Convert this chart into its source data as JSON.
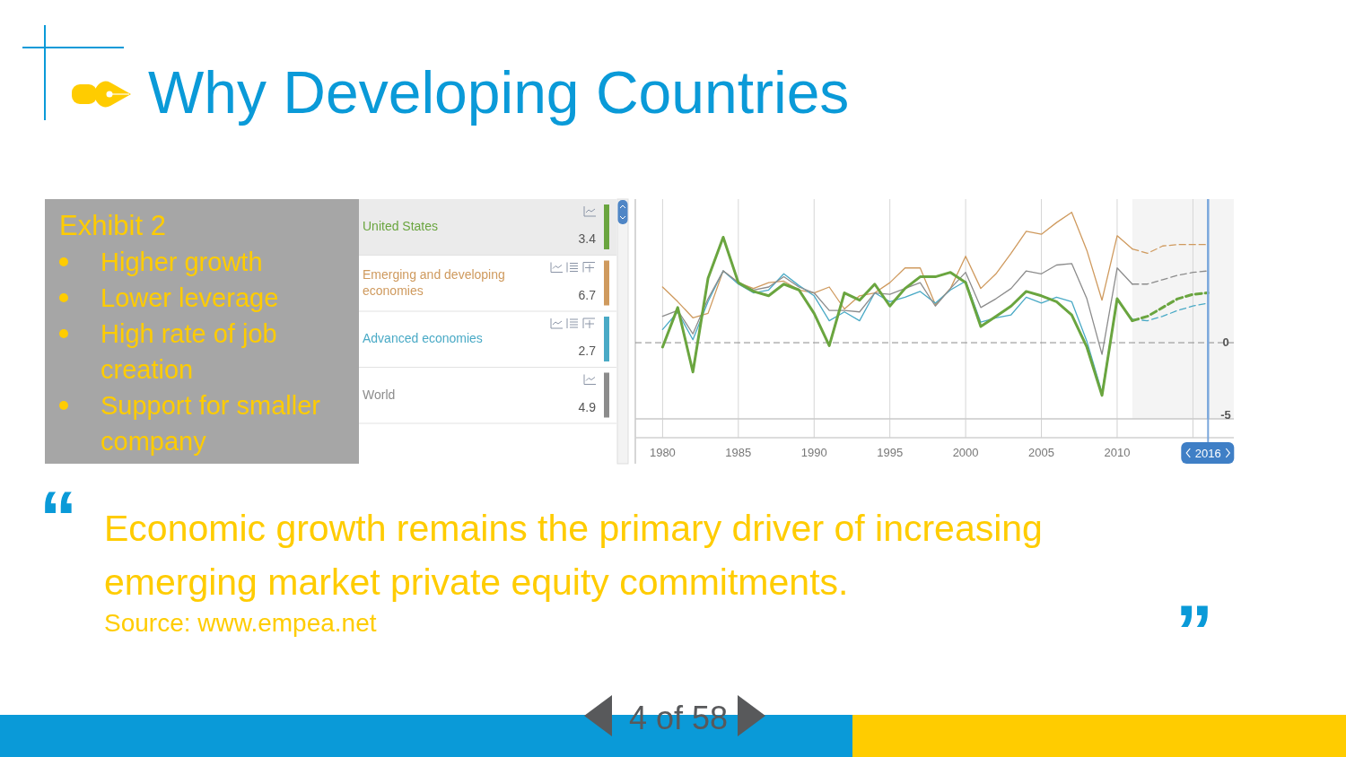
{
  "chart_data": {
    "type": "line",
    "title": "Why Developing Countries",
    "subtitle": "Exhibit 2",
    "annotations": [
      "Higher growth",
      "Lower leverage",
      "High rate of job creation",
      "Support for smaller company",
      "Economic growth remains the primary driver of increasing emerging market private equity commitments.",
      "Source: www.empea.net",
      "4 of 58",
      "“",
      "”",
      "3.4",
      "6.7",
      "2.7",
      "4.9"
    ],
    "xlim": [
      1978.2,
      2017.7
    ],
    "xticks": [
      1980,
      1985,
      1990,
      1995,
      2000,
      2005,
      2010,
      {
        "value": 2015,
        "label": null
      }
    ],
    "ylim": [
      -5.2,
      9.8
    ],
    "yticks": [
      -5,
      0
    ],
    "grid": "x",
    "legend": "left",
    "bands": [
      {
        "axis": "x",
        "from": 2011,
        "to": 2017.7,
        "color": "#f4f4f4"
      }
    ],
    "ref_lines": [
      {
        "axis": "y",
        "value": 0,
        "color": "#8a8a8a",
        "line_style": "dashed"
      },
      {
        "axis": "x",
        "value": 2016,
        "label": "2016",
        "color": "#7aa7dc"
      }
    ],
    "series": [
      {
        "name": "United States",
        "color": "#6aa53f",
        "x": [
          1980,
          1981,
          1982,
          1983,
          1984,
          1985,
          1986,
          1987,
          1988,
          1989,
          1990,
          1991,
          1992,
          1993,
          1994,
          1995,
          1996,
          1997,
          1998,
          1999,
          2000,
          2001,
          2002,
          2003,
          2004,
          2005,
          2006,
          2007,
          2008,
          2009,
          2010,
          2011
        ],
        "values": [
          -0.3,
          2.4,
          -2.0,
          4.4,
          7.2,
          4.1,
          3.5,
          3.2,
          4.0,
          3.6,
          2.0,
          -0.2,
          3.4,
          2.9,
          4.0,
          2.5,
          3.7,
          4.5,
          4.5,
          4.8,
          4.1,
          1.1,
          1.8,
          2.5,
          3.5,
          3.2,
          2.8,
          1.9,
          -0.3,
          -3.6,
          3.0,
          1.5
        ]
      },
      {
        "name": "Emerging and developing economies",
        "color": "#cf9a5e",
        "x": [
          1980,
          1981,
          1982,
          1983,
          1984,
          1985,
          1986,
          1987,
          1988,
          1989,
          1990,
          1991,
          1992,
          1993,
          1994,
          1995,
          1996,
          1997,
          1998,
          1999,
          2000,
          2001,
          2002,
          2003,
          2004,
          2005,
          2006,
          2007,
          2008,
          2009,
          2010,
          2011
        ],
        "values": [
          3.8,
          2.8,
          1.7,
          2.0,
          4.9,
          4.1,
          3.7,
          4.1,
          4.2,
          3.6,
          3.4,
          3.8,
          2.3,
          3.2,
          3.4,
          4.1,
          5.1,
          5.1,
          2.6,
          3.7,
          5.9,
          3.7,
          4.7,
          6.1,
          7.6,
          7.4,
          8.2,
          8.9,
          6.3,
          2.9,
          7.3,
          6.4
        ]
      },
      {
        "name": "Advanced economies",
        "color": "#4aaac6",
        "x": [
          1980,
          1981,
          1982,
          1983,
          1984,
          1985,
          1986,
          1987,
          1988,
          1989,
          1990,
          1991,
          1992,
          1993,
          1994,
          1995,
          1996,
          1997,
          1998,
          1999,
          2000,
          2001,
          2002,
          2003,
          2004,
          2005,
          2006,
          2007,
          2008,
          2009,
          2010,
          2011
        ],
        "values": [
          0.9,
          2.1,
          0.2,
          2.8,
          4.9,
          4.0,
          3.4,
          3.6,
          4.7,
          3.9,
          3.2,
          1.5,
          2.1,
          1.5,
          3.4,
          2.8,
          3.1,
          3.5,
          2.7,
          3.6,
          4.2,
          1.4,
          1.7,
          1.9,
          3.1,
          2.7,
          3.1,
          2.8,
          0.1,
          -3.4,
          2.9,
          1.6
        ]
      },
      {
        "name": "World",
        "color": "#8c8c8c",
        "x": [
          1980,
          1981,
          1982,
          1983,
          1984,
          1985,
          1986,
          1987,
          1988,
          1989,
          1990,
          1991,
          1992,
          1993,
          1994,
          1995,
          1996,
          1997,
          1998,
          1999,
          2000,
          2001,
          2002,
          2003,
          2004,
          2005,
          2006,
          2007,
          2008,
          2009,
          2010,
          2011
        ],
        "values": [
          1.8,
          2.2,
          0.6,
          3.0,
          4.9,
          4.1,
          3.6,
          3.8,
          4.5,
          3.8,
          3.4,
          2.2,
          2.2,
          2.1,
          3.4,
          3.3,
          3.7,
          4.1,
          2.5,
          3.7,
          4.8,
          2.4,
          3.0,
          3.7,
          4.9,
          4.7,
          5.3,
          5.4,
          3.0,
          -0.8,
          5.1,
          4.0
        ]
      },
      {
        "color": "#6aa53f",
        "line_style": "dashed",
        "x": [
          2011,
          2012,
          2013,
          2014,
          2015,
          2016
        ],
        "values": [
          1.5,
          1.8,
          2.4,
          3.0,
          3.3,
          3.4
        ]
      },
      {
        "color": "#cf9a5e",
        "line_style": "dashed",
        "x": [
          2011,
          2012,
          2013,
          2014,
          2015,
          2016
        ],
        "values": [
          6.4,
          6.1,
          6.6,
          6.7,
          6.7,
          6.7
        ]
      },
      {
        "color": "#4aaac6",
        "line_style": "dashed",
        "x": [
          2011,
          2012,
          2013,
          2014,
          2015,
          2016
        ],
        "values": [
          1.6,
          1.5,
          1.8,
          2.2,
          2.5,
          2.7
        ]
      },
      {
        "color": "#8c8c8c",
        "line_style": "dashed",
        "x": [
          2011,
          2012,
          2013,
          2014,
          2015,
          2016
        ],
        "values": [
          4.0,
          4.0,
          4.3,
          4.6,
          4.8,
          4.9
        ]
      }
    ]
  }
}
